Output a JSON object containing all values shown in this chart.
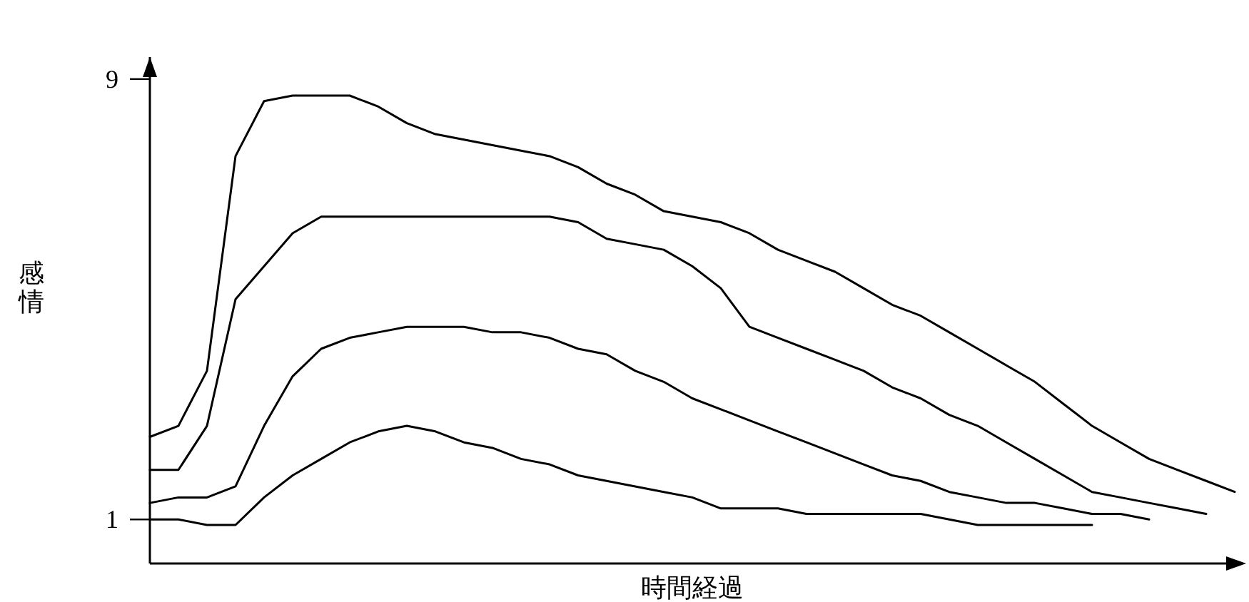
{
  "chart_data": {
    "type": "line",
    "ylabel": "感情",
    "xlabel": "時間経過",
    "categories": [
      null,
      null,
      null,
      null,
      null,
      null,
      null,
      null,
      null,
      null,
      null,
      null,
      null,
      null,
      null,
      null,
      null,
      null,
      null,
      null,
      null,
      null,
      null,
      null,
      null,
      null,
      null,
      null,
      null,
      null,
      null,
      null,
      null,
      null,
      null,
      null,
      null,
      null,
      null
    ],
    "ylim": [
      0.2,
      9.4
    ],
    "yticks": [
      1,
      9
    ],
    "grid": false,
    "tick_labels": "y",
    "marker": "none",
    "line_style": "solid",
    "series": [
      {
        "color": "#000000",
        "values": [
          2.5,
          2.7,
          3.7,
          7.6,
          8.6,
          8.7,
          8.7,
          8.7,
          8.5,
          8.2,
          8.0,
          7.9,
          7.8,
          7.7,
          7.6,
          7.4,
          7.1,
          6.9,
          6.6,
          6.5,
          6.4,
          6.2,
          5.9,
          5.7,
          5.5,
          5.2,
          4.9,
          4.7,
          4.4,
          4.1,
          3.8,
          3.5,
          3.1,
          2.7,
          2.4,
          2.1,
          1.9,
          1.7,
          1.5
        ]
      },
      {
        "color": "#000000",
        "values": [
          1.9,
          1.9,
          2.7,
          5.0,
          5.6,
          6.2,
          6.5,
          6.5,
          6.5,
          6.5,
          6.5,
          6.5,
          6.5,
          6.5,
          6.5,
          6.4,
          6.1,
          6.0,
          5.9,
          5.6,
          5.2,
          4.5,
          4.3,
          4.1,
          3.9,
          3.7,
          3.4,
          3.2,
          2.9,
          2.7,
          2.4,
          2.1,
          1.8,
          1.5,
          1.4,
          1.3,
          1.2,
          1.1,
          null
        ]
      },
      {
        "color": "#000000",
        "values": [
          1.3,
          1.4,
          1.4,
          1.6,
          2.7,
          3.6,
          4.1,
          4.3,
          4.4,
          4.5,
          4.5,
          4.5,
          4.4,
          4.4,
          4.3,
          4.1,
          4.0,
          3.7,
          3.5,
          3.2,
          3.0,
          2.8,
          2.6,
          2.4,
          2.2,
          2.0,
          1.8,
          1.7,
          1.5,
          1.4,
          1.3,
          1.3,
          1.2,
          1.1,
          1.1,
          1.0,
          null,
          null,
          null
        ]
      },
      {
        "color": "#000000",
        "values": [
          1.0,
          1.0,
          0.9,
          0.9,
          1.4,
          1.8,
          2.1,
          2.4,
          2.6,
          2.7,
          2.6,
          2.4,
          2.3,
          2.1,
          2.0,
          1.8,
          1.7,
          1.6,
          1.5,
          1.4,
          1.2,
          1.2,
          1.2,
          1.1,
          1.1,
          1.1,
          1.1,
          1.1,
          1.0,
          0.9,
          0.9,
          0.9,
          0.9,
          0.9,
          null,
          null,
          null,
          null,
          null
        ]
      }
    ]
  }
}
